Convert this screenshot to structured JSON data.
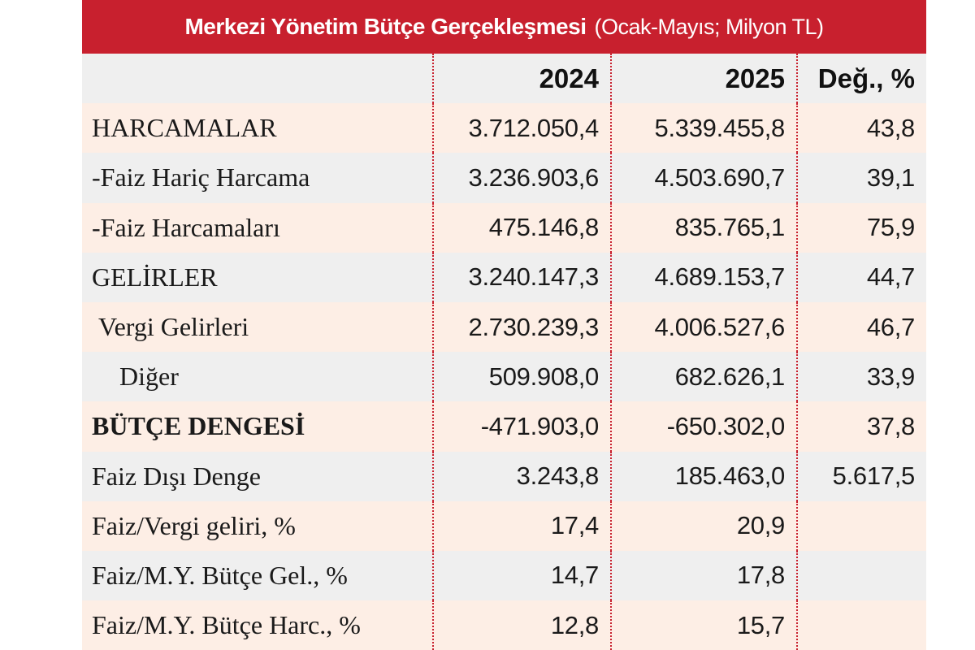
{
  "title": {
    "main": "Merkezi Yönetim Bütçe Gerçekleşmesi",
    "sub": "(Ocak-Mayıs; Milyon TL)"
  },
  "columns": [
    "2024",
    "2025",
    "Değ., %"
  ],
  "rows": [
    {
      "label": "HARCAMALAR",
      "v2024": "3.712.050,4",
      "v2025": "5.339.455,8",
      "chg": "43,8"
    },
    {
      "label": "-Faiz Hariç Harcama",
      "v2024": "3.236.903,6",
      "v2025": "4.503.690,7",
      "chg": "39,1"
    },
    {
      "label": "-Faiz Harcamaları",
      "v2024": "475.146,8",
      "v2025": "835.765,1",
      "chg": "75,9"
    },
    {
      "label": "GELİRLER",
      "v2024": "3.240.147,3",
      "v2025": "4.689.153,7",
      "chg": "44,7"
    },
    {
      "label": "Vergi Gelirleri",
      "v2024": "2.730.239,3",
      "v2025": "4.006.527,6",
      "chg": "46,7"
    },
    {
      "label": "Diğer",
      "v2024": "509.908,0",
      "v2025": "682.626,1",
      "chg": "33,9"
    },
    {
      "label": "BÜTÇE DENGESİ",
      "v2024": "-471.903,0",
      "v2025": "-650.302,0",
      "chg": "37,8"
    },
    {
      "label": "Faiz Dışı Denge",
      "v2024": "3.243,8",
      "v2025": "185.463,0",
      "chg": "5.617,5"
    },
    {
      "label": "Faiz/Vergi geliri, %",
      "v2024": "17,4",
      "v2025": "20,9",
      "chg": ""
    },
    {
      "label": "Faiz/M.Y. Bütçe Gel., %",
      "v2024": "14,7",
      "v2025": "17,8",
      "chg": ""
    },
    {
      "label": "Faiz/M.Y. Bütçe Harc., %",
      "v2024": "12,8",
      "v2025": "15,7",
      "chg": ""
    }
  ]
}
